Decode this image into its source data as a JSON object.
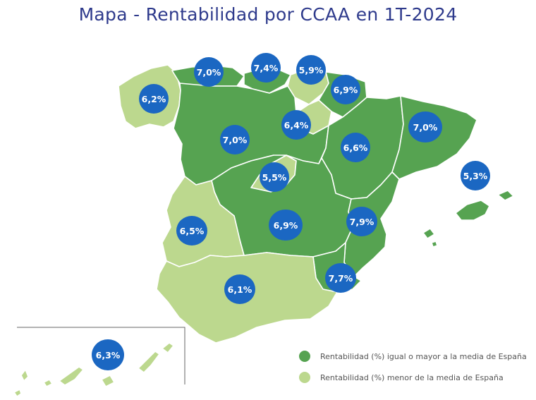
{
  "title": "Mapa - Rentabilidad por CCAA en 1T-2024",
  "colors": {
    "high": "#56a351",
    "low": "#bcd88e",
    "bubble": "#1b67c2"
  },
  "legend": {
    "high": "Rentabilidad (%) igual o mayor a la media de España",
    "low": "Rentabilidad (%) menor de la media de España"
  },
  "labels": {
    "galicia": "6,2%",
    "asturias": "7,0%",
    "cantabria": "7,4%",
    "pais_vasco": "5,9%",
    "navarra": "6,9%",
    "la_rioja": "6,4%",
    "aragon": "6,6%",
    "cataluna": "7,0%",
    "baleares": "5,3%",
    "castilla_leon": "7,0%",
    "madrid": "5,5%",
    "castilla_la_mancha": "6,9%",
    "extremadura": "6,5%",
    "valencia": "7,9%",
    "murcia": "7,7%",
    "andalucia": "6,1%",
    "canarias": "6,3%"
  }
}
